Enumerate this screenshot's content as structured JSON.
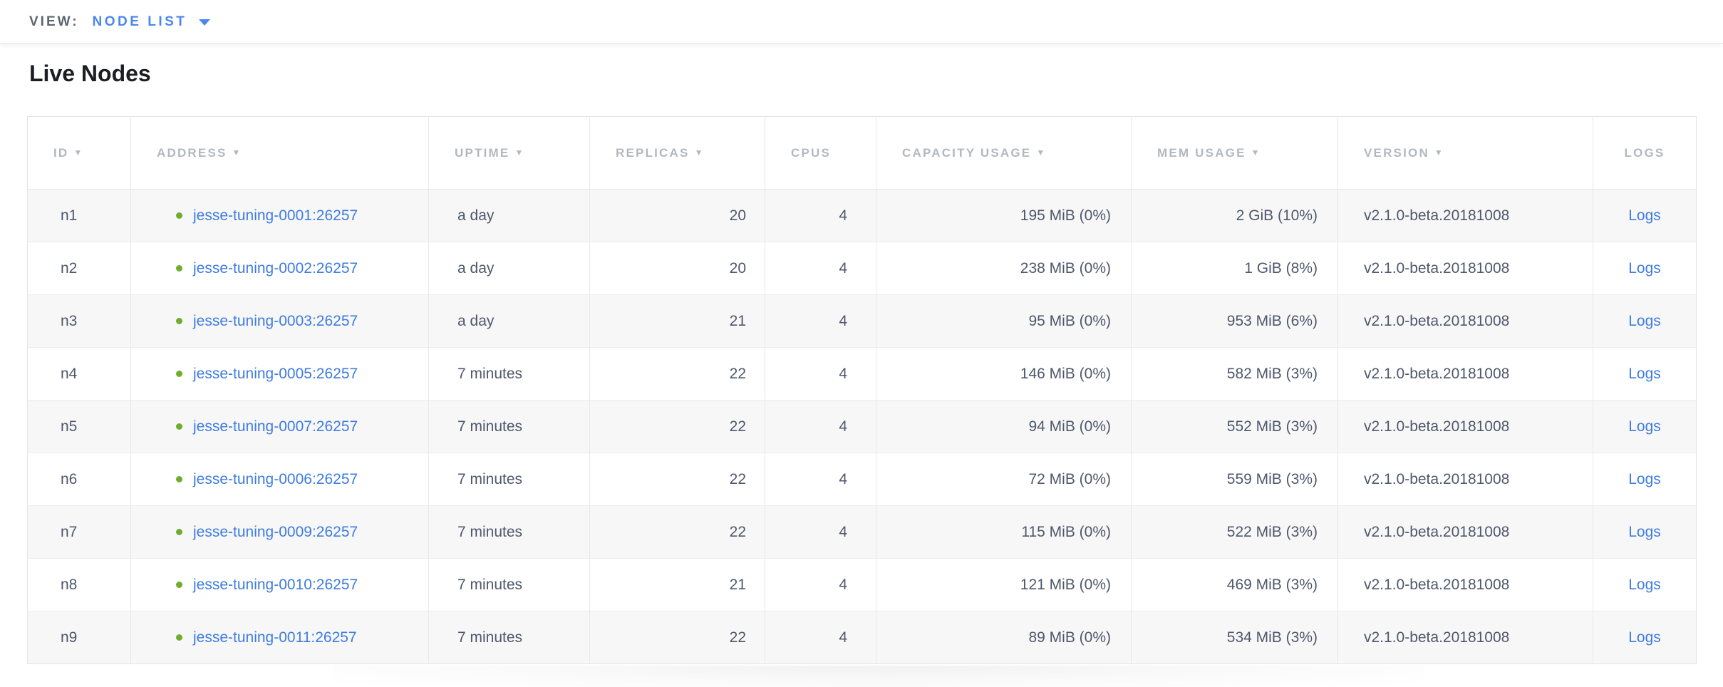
{
  "view_bar": {
    "label": "VIEW:",
    "selected": "NODE LIST"
  },
  "page": {
    "title": "Live Nodes"
  },
  "table": {
    "sort_indicator": "▼",
    "columns": [
      {
        "key": "id",
        "label": "ID",
        "sortable": true
      },
      {
        "key": "address",
        "label": "ADDRESS",
        "sortable": true
      },
      {
        "key": "uptime",
        "label": "UPTIME",
        "sortable": true
      },
      {
        "key": "replicas",
        "label": "REPLICAS",
        "sortable": true
      },
      {
        "key": "cpus",
        "label": "CPUS",
        "sortable": false
      },
      {
        "key": "capacity",
        "label": "CAPACITY USAGE",
        "sortable": true
      },
      {
        "key": "mem",
        "label": "MEM USAGE",
        "sortable": true
      },
      {
        "key": "version",
        "label": "VERSION",
        "sortable": true
      },
      {
        "key": "logs",
        "label": "LOGS",
        "sortable": false
      }
    ],
    "rows": [
      {
        "id": "n1",
        "status": "live",
        "address": "jesse-tuning-0001:26257",
        "uptime": "a day",
        "replicas": "20",
        "cpus": "4",
        "capacity": "195 MiB (0%)",
        "mem": "2 GiB (10%)",
        "version": "v2.1.0-beta.20181008",
        "logs": "Logs"
      },
      {
        "id": "n2",
        "status": "live",
        "address": "jesse-tuning-0002:26257",
        "uptime": "a day",
        "replicas": "20",
        "cpus": "4",
        "capacity": "238 MiB (0%)",
        "mem": "1 GiB (8%)",
        "version": "v2.1.0-beta.20181008",
        "logs": "Logs"
      },
      {
        "id": "n3",
        "status": "live",
        "address": "jesse-tuning-0003:26257",
        "uptime": "a day",
        "replicas": "21",
        "cpus": "4",
        "capacity": "95 MiB (0%)",
        "mem": "953 MiB (6%)",
        "version": "v2.1.0-beta.20181008",
        "logs": "Logs"
      },
      {
        "id": "n4",
        "status": "live",
        "address": "jesse-tuning-0005:26257",
        "uptime": "7 minutes",
        "replicas": "22",
        "cpus": "4",
        "capacity": "146 MiB (0%)",
        "mem": "582 MiB (3%)",
        "version": "v2.1.0-beta.20181008",
        "logs": "Logs"
      },
      {
        "id": "n5",
        "status": "live",
        "address": "jesse-tuning-0007:26257",
        "uptime": "7 minutes",
        "replicas": "22",
        "cpus": "4",
        "capacity": "94 MiB (0%)",
        "mem": "552 MiB (3%)",
        "version": "v2.1.0-beta.20181008",
        "logs": "Logs"
      },
      {
        "id": "n6",
        "status": "live",
        "address": "jesse-tuning-0006:26257",
        "uptime": "7 minutes",
        "replicas": "22",
        "cpus": "4",
        "capacity": "72 MiB (0%)",
        "mem": "559 MiB (3%)",
        "version": "v2.1.0-beta.20181008",
        "logs": "Logs"
      },
      {
        "id": "n7",
        "status": "live",
        "address": "jesse-tuning-0009:26257",
        "uptime": "7 minutes",
        "replicas": "22",
        "cpus": "4",
        "capacity": "115 MiB (0%)",
        "mem": "522 MiB (3%)",
        "version": "v2.1.0-beta.20181008",
        "logs": "Logs"
      },
      {
        "id": "n8",
        "status": "live",
        "address": "jesse-tuning-0010:26257",
        "uptime": "7 minutes",
        "replicas": "21",
        "cpus": "4",
        "capacity": "121 MiB (0%)",
        "mem": "469 MiB (3%)",
        "version": "v2.1.0-beta.20181008",
        "logs": "Logs"
      },
      {
        "id": "n9",
        "status": "live",
        "address": "jesse-tuning-0011:26257",
        "uptime": "7 minutes",
        "replicas": "22",
        "cpus": "4",
        "capacity": "89 MiB (0%)",
        "mem": "534 MiB (3%)",
        "version": "v2.1.0-beta.20181008",
        "logs": "Logs"
      }
    ]
  },
  "colors": {
    "accent_blue": "#4a86ef",
    "link_blue": "#3e7ce0",
    "status_live_green": "#70ad2f",
    "header_text_gray": "#b4b8be",
    "cell_text": "#4e586b",
    "title_text": "#1b1e23",
    "row_alt_background": "#f7f7f8"
  }
}
